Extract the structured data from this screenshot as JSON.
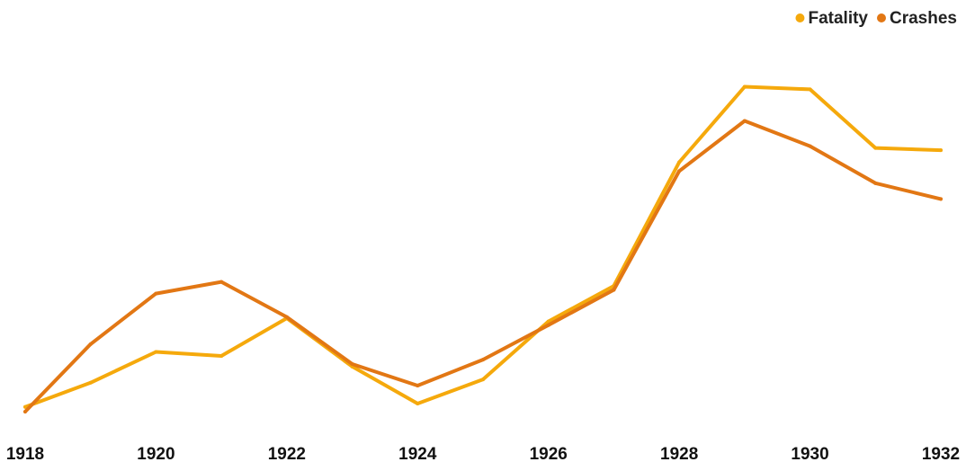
{
  "chart_data": {
    "type": "line",
    "title": "",
    "xlabel": "",
    "ylabel": "",
    "x": [
      1918,
      1919,
      1920,
      1921,
      1922,
      1923,
      1924,
      1925,
      1926,
      1927,
      1928,
      1929,
      1930,
      1931,
      1932
    ],
    "x_tick_labels": [
      "1918",
      "1920",
      "1922",
      "1924",
      "1926",
      "1928",
      "1930",
      "1932"
    ],
    "y_axis_visible": false,
    "ylim": [
      0,
      100
    ],
    "grid": false,
    "legend_position": "top-right",
    "series": [
      {
        "name": "Fatality",
        "color": "#F5A90C",
        "values": [
          1.3,
          7.9,
          16.3,
          15.2,
          25.5,
          12.3,
          2.2,
          8.8,
          24.6,
          34.3,
          68.0,
          88.6,
          87.9,
          71.9,
          71.3
        ]
      },
      {
        "name": "Crashes",
        "color": "#E27714",
        "values": [
          0,
          18.4,
          32.2,
          35.4,
          25.8,
          13.0,
          7.1,
          14.2,
          23.6,
          33.2,
          65.6,
          79.3,
          72.4,
          62.3,
          58.0
        ]
      }
    ]
  }
}
